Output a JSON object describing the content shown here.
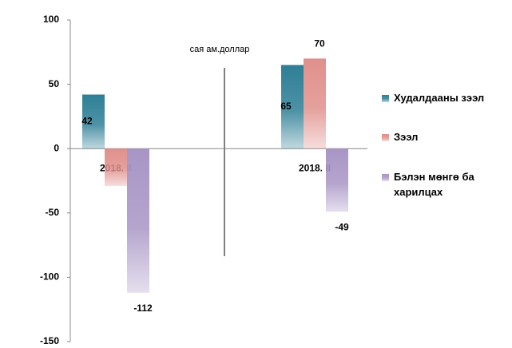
{
  "chart_data": {
    "type": "bar",
    "subtitle": "сая ам.доллар",
    "categories": [
      "2018. II",
      "2018. II"
    ],
    "series": [
      {
        "name": "Худалдааны зээл",
        "color": "#2e7f96",
        "values": [
          42,
          65
        ],
        "value_labels": [
          "42",
          "65"
        ]
      },
      {
        "name": "Зээл",
        "color": "#e0908c",
        "values": [
          -29,
          70
        ],
        "value_labels": [
          null,
          "70"
        ]
      },
      {
        "name": "Бэлэн мөнгө ба харилцах",
        "color": "#a895c5",
        "values": [
          -112,
          -49
        ],
        "value_labels": [
          "-112",
          "-49"
        ]
      }
    ],
    "ylim": [
      -150,
      100
    ],
    "yticks": [
      -150,
      -100,
      -50,
      0,
      50,
      100
    ],
    "grid": false,
    "legend": "right"
  }
}
